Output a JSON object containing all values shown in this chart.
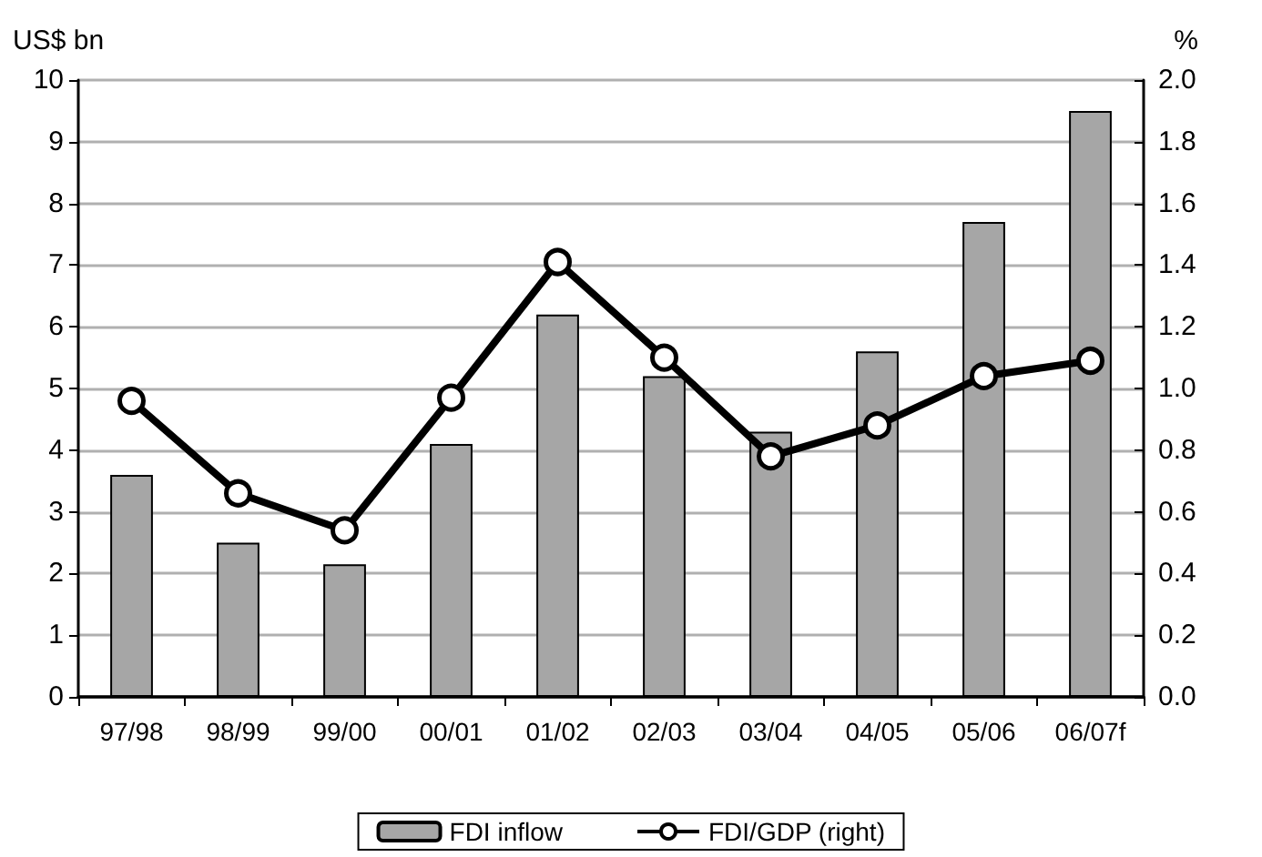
{
  "chart_data": {
    "type": "bar",
    "categories": [
      "97/98",
      "98/99",
      "99/00",
      "00/01",
      "01/02",
      "02/03",
      "03/04",
      "04/05",
      "05/06",
      "06/07f"
    ],
    "series": [
      {
        "name": "FDI inflow",
        "color": "#a6a6a6",
        "values": [
          3.6,
          2.5,
          2.15,
          4.1,
          6.2,
          5.2,
          4.3,
          5.6,
          7.7,
          9.5
        ]
      },
      {
        "name": "FDI/GDP (right)",
        "type": "line",
        "axis": "y2",
        "color": "#000000",
        "marker": "circle",
        "values": [
          0.96,
          0.66,
          0.54,
          0.97,
          1.41,
          1.1,
          0.78,
          0.88,
          1.04,
          1.09
        ]
      }
    ],
    "ylabel": "US$ bn",
    "y2label": "%",
    "ylim": [
      0,
      10
    ],
    "yticks": [
      0,
      1,
      2,
      3,
      4,
      5,
      6,
      7,
      8,
      9,
      10
    ],
    "y2lim": [
      0,
      2
    ],
    "y2ticks": [
      {
        "value": 0,
        "label": "0.0"
      },
      {
        "value": 0.2,
        "label": "0.2"
      },
      {
        "value": 0.4,
        "label": "0.4"
      },
      {
        "value": 0.6,
        "label": "0.6"
      },
      {
        "value": 0.8,
        "label": "0.8"
      },
      {
        "value": 1,
        "label": "1.0"
      },
      {
        "value": 1.2,
        "label": "1.2"
      },
      {
        "value": 1.4,
        "label": "1.4"
      },
      {
        "value": 1.6,
        "label": "1.6"
      },
      {
        "value": 1.8,
        "label": "1.8"
      },
      {
        "value": 2,
        "label": "2.0"
      }
    ],
    "grid": "y",
    "legend": "bottom"
  }
}
